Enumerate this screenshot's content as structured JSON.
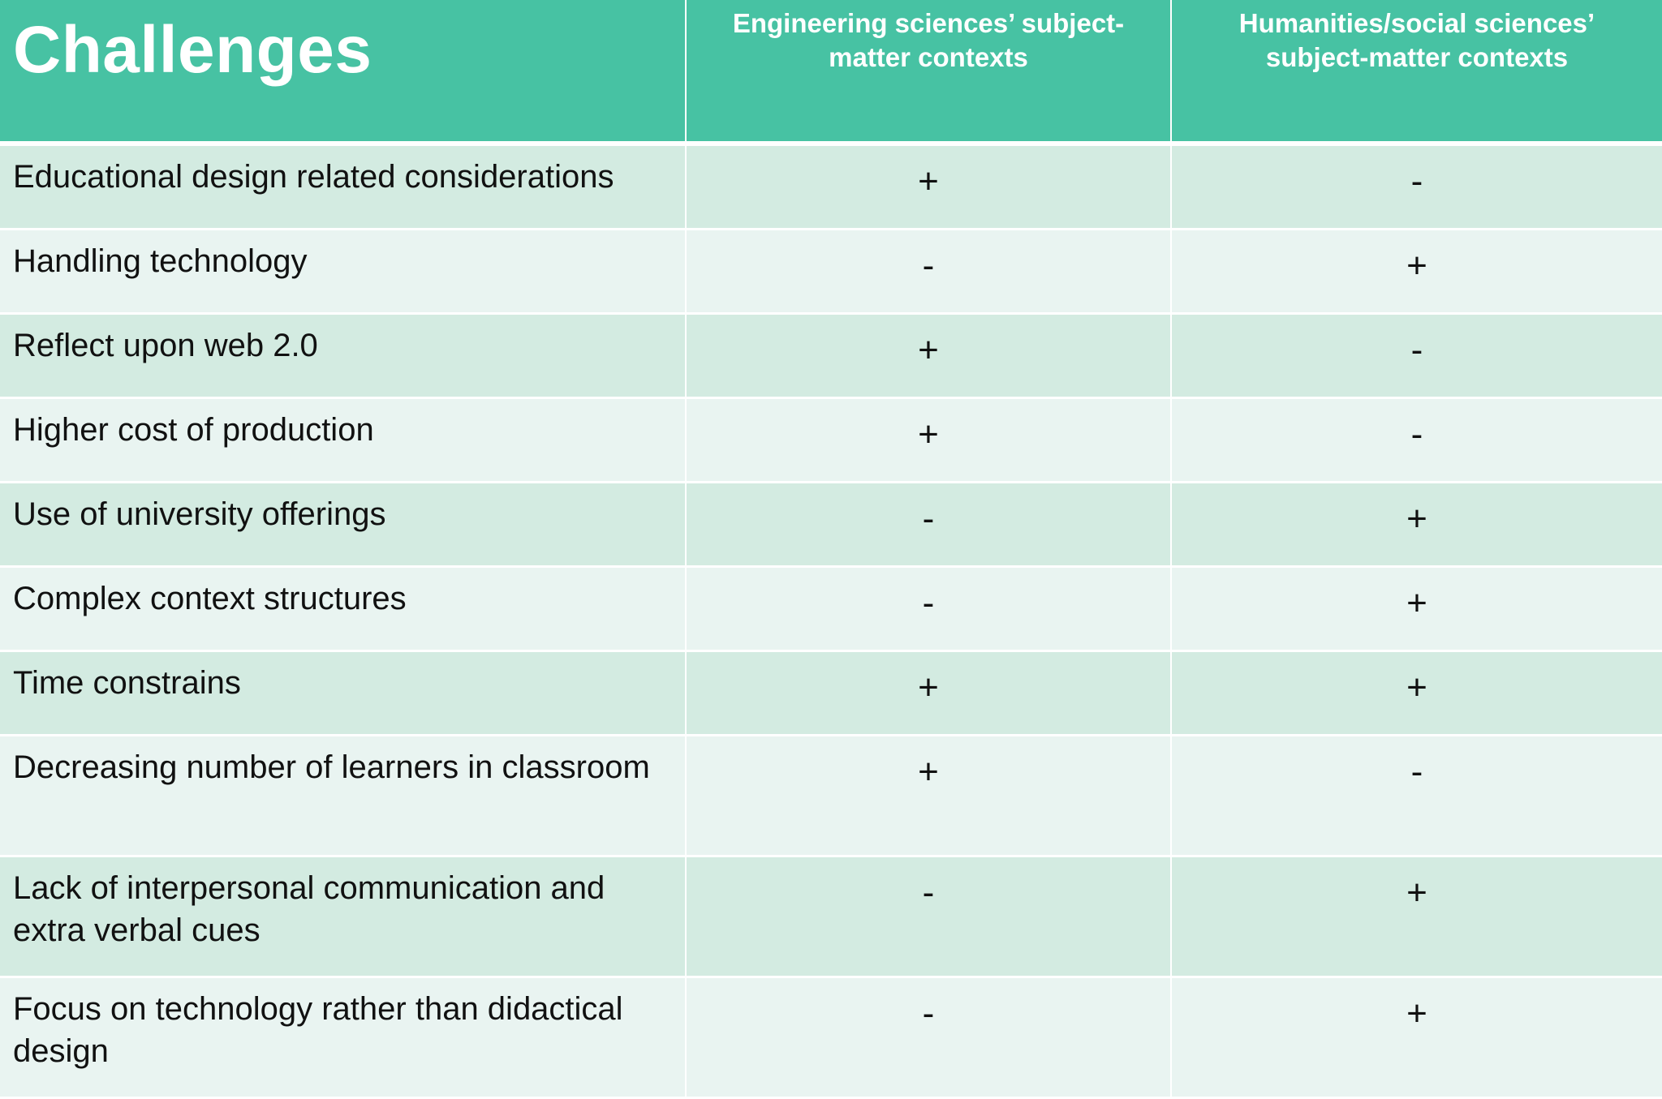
{
  "header": {
    "title": "Challenges",
    "col_engineering": "Engineering sciences’ subject-matter contexts",
    "col_humanities": "Humanities/social sciences’ subject-matter contexts"
  },
  "colors": {
    "header_bg": "#47c2a3",
    "row_odd_bg": "#d3ebe1",
    "row_even_bg": "#e9f4f1"
  },
  "rows": [
    {
      "challenge": "Educational design related considerations",
      "engineering": "+",
      "humanities": "-"
    },
    {
      "challenge": "Handling technology",
      "engineering": "-",
      "humanities": "+"
    },
    {
      "challenge": "Reflect upon web 2.0",
      "engineering": "+",
      "humanities": "-"
    },
    {
      "challenge": "Higher cost of production",
      "engineering": "+",
      "humanities": "-"
    },
    {
      "challenge": "Use of university offerings",
      "engineering": "-",
      "humanities": "+"
    },
    {
      "challenge": "Complex context structures",
      "engineering": "-",
      "humanities": "+"
    },
    {
      "challenge": "Time constrains",
      "engineering": "+",
      "humanities": "+"
    },
    {
      "challenge": "Decreasing number of learners in classroom",
      "engineering": "+",
      "humanities": "-"
    },
    {
      "challenge": "Lack of interpersonal communication and extra verbal cues",
      "engineering": "-",
      "humanities": "+"
    },
    {
      "challenge": "Focus on technology rather than didactical design",
      "engineering": "-",
      "humanities": "+"
    }
  ]
}
